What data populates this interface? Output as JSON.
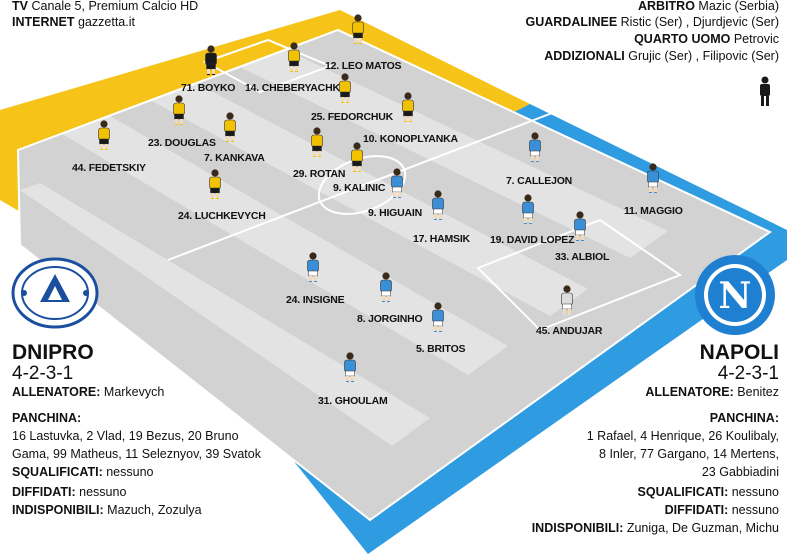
{
  "broadcast": {
    "tv_label": "TV",
    "tv_value": "Canale 5, Premium Calcio HD",
    "internet_label": "INTERNET",
    "internet_value": "gazzetta.it"
  },
  "officials": {
    "arbitro_label": "ARBITRO",
    "arbitro_value": "Mazic (Serbia)",
    "guardalinee_label": "GUARDALINEE",
    "guardalinee_value": "Ristic (Ser) , Djurdjevic (Ser)",
    "quarto_label": "QUARTO UOMO",
    "quarto_value": "Petrovic",
    "addizionali_label": "ADDIZIONALI",
    "addizionali_value": "Grujic (Ser) , Filipovic (Ser)"
  },
  "home": {
    "name": "DNIPRO",
    "formation": "4-2-3-1",
    "coach_label": "ALLENATORE:",
    "coach": "Markevych",
    "bench_label": "PANCHINA:",
    "bench_line1": "16 Lastuvka, 2 Vlad, 19 Bezus, 20 Bruno",
    "bench_line2": "Gama, 99 Matheus, 11 Seleznyov, 39 Svatok",
    "suspended_label": "SQUALIFICATI:",
    "suspended": "nessuno",
    "warned_label": "DIFFIDATI:",
    "warned": "nessuno",
    "unavailable_label": "INDISPONIBILI:",
    "unavailable": "Mazuch, Zozulya",
    "kit_color": "#f2c200",
    "gk_color": "#1a1a1a",
    "players": [
      "71. BOYKO",
      "14. CHEBERYACHKO",
      "12. LEO MATOS",
      "23. DOUGLAS",
      "25. FEDORCHUK",
      "44. FEDETSKIY",
      "7. KANKAVA",
      "10. KONOPLYANKA",
      "29. ROTAN",
      "9. KALINIC",
      "24. LUCHKEVYCH"
    ]
  },
  "away": {
    "name": "NAPOLI",
    "formation": "4-2-3-1",
    "coach_label": "ALLENATORE:",
    "coach": "Benitez",
    "bench_label": "PANCHINA:",
    "bench_line1": "1 Rafael, 4 Henrique, 26 Koulibaly,",
    "bench_line2": "8 Inler, 77 Gargano, 14 Mertens,",
    "bench_line3": "23 Gabbiadini",
    "suspended_label": "SQUALIFICATI:",
    "suspended": "nessuno",
    "warned_label": "DIFFIDATI:",
    "warned": "nessuno",
    "unavailable_label": "INDISPONIBILI:",
    "unavailable": "Zuniga, De Guzman, Michu",
    "kit_color": "#3b8fd6",
    "gk_color": "#dddddd",
    "players": [
      "7. CALLEJON",
      "9. HIGUAIN",
      "11. MAGGIO",
      "17. HAMSIK",
      "19. DAVID LOPEZ",
      "33. ALBIOL",
      "24. INSIGNE",
      "8. JORGINHO",
      "45. ANDUJAR",
      "5. BRITOS",
      "31. GHOULAM"
    ]
  },
  "colors": {
    "yellow_band": "#f6c318",
    "blue_band": "#2f9be0",
    "pitch_dark": "#cfcfcf",
    "pitch_light": "#e2e2e2"
  }
}
